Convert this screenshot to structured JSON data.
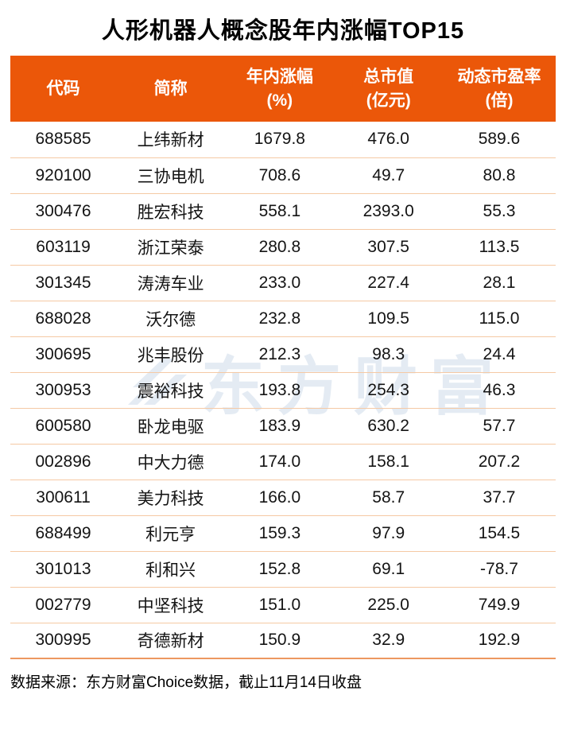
{
  "chart_data": {
    "type": "table",
    "title": "人形机器人概念股年内涨幅TOP15",
    "columns": [
      {
        "line1": "代码",
        "line2": ""
      },
      {
        "line1": "简称",
        "line2": ""
      },
      {
        "line1": "年内涨幅",
        "line2": "(%)"
      },
      {
        "line1": "总市值",
        "line2": "(亿元)"
      },
      {
        "line1": "动态市盈率",
        "line2": "(倍)"
      }
    ],
    "rows": [
      [
        "688585",
        "上纬新材",
        "1679.8",
        "476.0",
        "589.6"
      ],
      [
        "920100",
        "三协电机",
        "708.6",
        "49.7",
        "80.8"
      ],
      [
        "300476",
        "胜宏科技",
        "558.1",
        "2393.0",
        "55.3"
      ],
      [
        "603119",
        "浙江荣泰",
        "280.8",
        "307.5",
        "113.5"
      ],
      [
        "301345",
        "涛涛车业",
        "233.0",
        "227.4",
        "28.1"
      ],
      [
        "688028",
        "沃尔德",
        "232.8",
        "109.5",
        "115.0"
      ],
      [
        "300695",
        "兆丰股份",
        "212.3",
        "98.3",
        "24.4"
      ],
      [
        "300953",
        "震裕科技",
        "193.8",
        "254.3",
        "46.3"
      ],
      [
        "600580",
        "卧龙电驱",
        "183.9",
        "630.2",
        "57.7"
      ],
      [
        "002896",
        "中大力德",
        "174.0",
        "158.1",
        "207.2"
      ],
      [
        "300611",
        "美力科技",
        "166.0",
        "58.7",
        "37.7"
      ],
      [
        "688499",
        "利元亨",
        "159.3",
        "97.9",
        "154.5"
      ],
      [
        "301013",
        "利和兴",
        "152.8",
        "69.1",
        "-78.7"
      ],
      [
        "002779",
        "中坚科技",
        "151.0",
        "225.0",
        "749.9"
      ],
      [
        "300995",
        "奇德新材",
        "150.9",
        "32.9",
        "192.9"
      ]
    ],
    "source_note": "数据来源：东方财富Choice数据，截止11月14日收盘"
  },
  "watermark": {
    "text": "东方财富"
  },
  "colors": {
    "header_bg": "#EB5709",
    "header_text": "#FFFFFF",
    "row_separator": "#F5C9A4",
    "bottom_line": "#ED9860",
    "watermark": "#E4EBF3",
    "title_text": "#000000"
  }
}
